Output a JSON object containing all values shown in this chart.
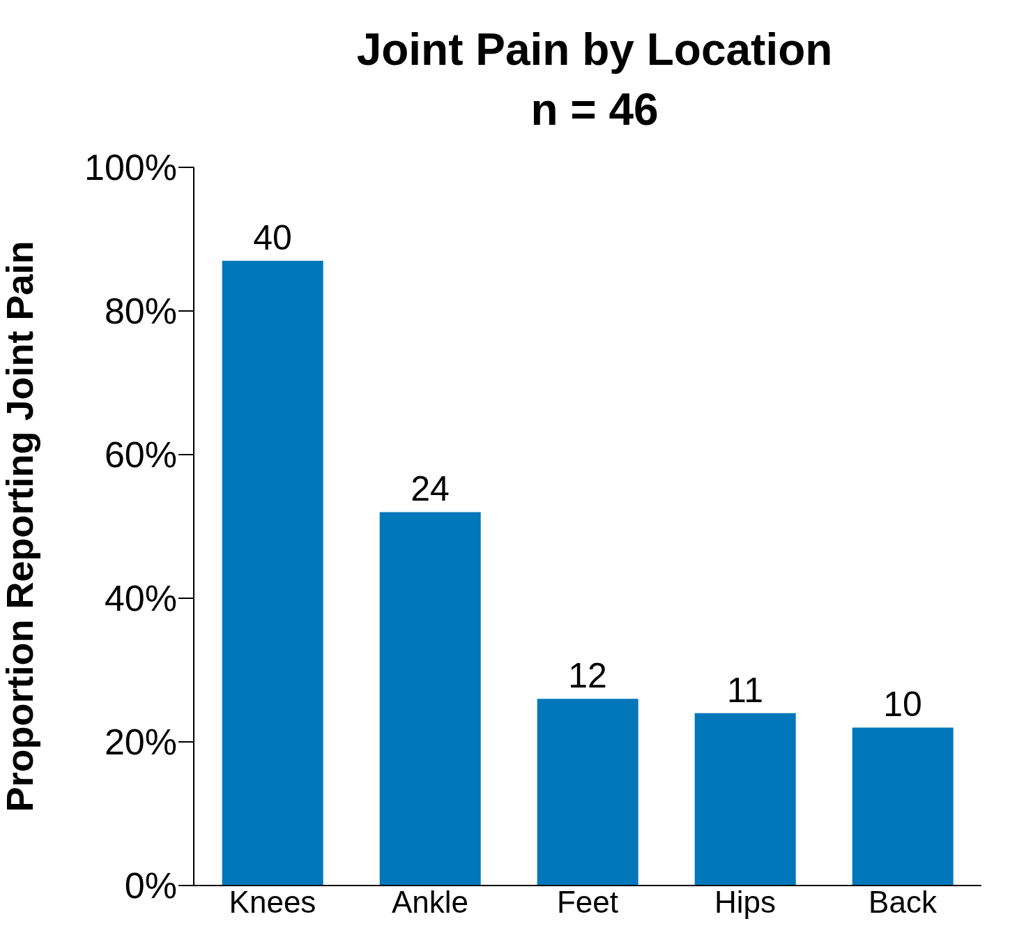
{
  "chart_data": {
    "type": "bar",
    "title": "Joint Pain by Location",
    "subtitle": "n = 46",
    "ylabel": "Proportion Reporting Joint Pain",
    "categories": [
      "Knees",
      "Ankle",
      "Feet",
      "Hips",
      "Back"
    ],
    "values": [
      87,
      52,
      26,
      24,
      22
    ],
    "annotations": [
      {
        "text": "40",
        "x": "Knees",
        "y": 87
      },
      {
        "text": "24",
        "x": "Ankle",
        "y": 52
      },
      {
        "text": "12",
        "x": "Feet",
        "y": 26
      },
      {
        "text": "11",
        "x": "Hips",
        "y": 24
      },
      {
        "text": "10",
        "x": "Back",
        "y": 22
      }
    ],
    "color": "#0077bb",
    "ylim": [
      0,
      100
    ],
    "yticks": [
      {
        "value": 0,
        "label": "0%"
      },
      {
        "value": 20,
        "label": "20%"
      },
      {
        "value": 40,
        "label": "40%"
      },
      {
        "value": 60,
        "label": "60%"
      },
      {
        "value": 80,
        "label": "80%"
      },
      {
        "value": 100,
        "label": "100%"
      }
    ]
  }
}
